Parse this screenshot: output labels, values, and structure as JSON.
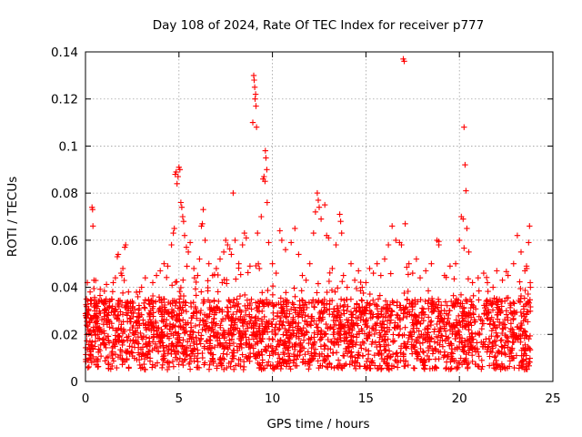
{
  "chart_data": {
    "type": "scatter",
    "title": "Day 108 of 2024, Rate Of TEC Index for receiver p777",
    "xlabel": "GPS time / hours",
    "ylabel": "ROTI / TECUs",
    "xlim": [
      0,
      25
    ],
    "ylim": [
      0,
      0.14
    ],
    "x_ticks": [
      0,
      5,
      10,
      15,
      20,
      25
    ],
    "x_tick_labels": [
      "0",
      "5",
      "10",
      "15",
      "20",
      "25"
    ],
    "y_ticks": [
      0,
      0.02,
      0.04,
      0.06,
      0.08,
      0.1,
      0.12,
      0.14
    ],
    "y_tick_labels": [
      "0",
      "0.02",
      "0.04",
      "0.06",
      "0.08",
      "0.1",
      "0.12",
      "0.14"
    ],
    "grid": true,
    "marker": "+",
    "series": [
      {
        "name": "ROTI",
        "color": "#ff0000",
        "points": [
          [
            0.05,
            0.035
          ],
          [
            0.1,
            0.042
          ],
          [
            0.15,
            0.03
          ],
          [
            0.2,
            0.025
          ],
          [
            0.25,
            0.038
          ],
          [
            0.3,
            0.033
          ],
          [
            0.35,
            0.074
          ],
          [
            0.38,
            0.073
          ],
          [
            0.4,
            0.066
          ],
          [
            0.45,
            0.043
          ],
          [
            0.5,
            0.028
          ],
          [
            0.6,
            0.031
          ],
          [
            0.8,
            0.029
          ],
          [
            1.0,
            0.03
          ],
          [
            1.2,
            0.028
          ],
          [
            1.4,
            0.035
          ],
          [
            1.6,
            0.044
          ],
          [
            1.7,
            0.053
          ],
          [
            1.75,
            0.054
          ],
          [
            1.9,
            0.046
          ],
          [
            2.0,
            0.048
          ],
          [
            2.1,
            0.057
          ],
          [
            2.15,
            0.058
          ],
          [
            2.3,
            0.038
          ],
          [
            2.5,
            0.034
          ],
          [
            2.8,
            0.036
          ],
          [
            3.0,
            0.04
          ],
          [
            3.2,
            0.044
          ],
          [
            3.4,
            0.033
          ],
          [
            3.6,
            0.042
          ],
          [
            3.8,
            0.045
          ],
          [
            4.0,
            0.047
          ],
          [
            4.2,
            0.05
          ],
          [
            4.4,
            0.049
          ],
          [
            4.6,
            0.058
          ],
          [
            4.7,
            0.063
          ],
          [
            4.75,
            0.065
          ],
          [
            4.8,
            0.088
          ],
          [
            4.85,
            0.089
          ],
          [
            4.9,
            0.084
          ],
          [
            4.95,
            0.087
          ],
          [
            5.0,
            0.091
          ],
          [
            5.05,
            0.09
          ],
          [
            5.1,
            0.076
          ],
          [
            5.15,
            0.074
          ],
          [
            5.2,
            0.07
          ],
          [
            5.25,
            0.068
          ],
          [
            5.3,
            0.062
          ],
          [
            5.4,
            0.057
          ],
          [
            5.5,
            0.055
          ],
          [
            5.6,
            0.059
          ],
          [
            5.8,
            0.048
          ],
          [
            6.0,
            0.045
          ],
          [
            6.1,
            0.052
          ],
          [
            6.2,
            0.066
          ],
          [
            6.25,
            0.067
          ],
          [
            6.3,
            0.073
          ],
          [
            6.4,
            0.06
          ],
          [
            6.6,
            0.05
          ],
          [
            6.8,
            0.045
          ],
          [
            7.0,
            0.048
          ],
          [
            7.2,
            0.052
          ],
          [
            7.4,
            0.055
          ],
          [
            7.5,
            0.06
          ],
          [
            7.6,
            0.058
          ],
          [
            7.8,
            0.054
          ],
          [
            7.9,
            0.08
          ],
          [
            8.0,
            0.06
          ],
          [
            8.2,
            0.05
          ],
          [
            8.4,
            0.058
          ],
          [
            8.5,
            0.063
          ],
          [
            8.6,
            0.061
          ],
          [
            8.8,
            0.049
          ],
          [
            8.95,
            0.11
          ],
          [
            9.0,
            0.13
          ],
          [
            9.02,
            0.128
          ],
          [
            9.05,
            0.125
          ],
          [
            9.07,
            0.12
          ],
          [
            9.1,
            0.122
          ],
          [
            9.12,
            0.117
          ],
          [
            9.15,
            0.108
          ],
          [
            9.2,
            0.063
          ],
          [
            9.3,
            0.048
          ],
          [
            9.4,
            0.07
          ],
          [
            9.5,
            0.086
          ],
          [
            9.55,
            0.087
          ],
          [
            9.6,
            0.085
          ],
          [
            9.62,
            0.098
          ],
          [
            9.65,
            0.095
          ],
          [
            9.7,
            0.09
          ],
          [
            9.72,
            0.076
          ],
          [
            9.8,
            0.059
          ],
          [
            10.0,
            0.05
          ],
          [
            10.2,
            0.046
          ],
          [
            10.4,
            0.064
          ],
          [
            10.5,
            0.06
          ],
          [
            10.7,
            0.056
          ],
          [
            11.0,
            0.059
          ],
          [
            11.2,
            0.065
          ],
          [
            11.4,
            0.054
          ],
          [
            11.6,
            0.045
          ],
          [
            11.8,
            0.043
          ],
          [
            12.0,
            0.05
          ],
          [
            12.2,
            0.063
          ],
          [
            12.3,
            0.072
          ],
          [
            12.4,
            0.08
          ],
          [
            12.45,
            0.077
          ],
          [
            12.5,
            0.074
          ],
          [
            12.6,
            0.069
          ],
          [
            12.8,
            0.075
          ],
          [
            12.9,
            0.062
          ],
          [
            13.0,
            0.061
          ],
          [
            13.2,
            0.048
          ],
          [
            13.4,
            0.058
          ],
          [
            13.6,
            0.071
          ],
          [
            13.65,
            0.068
          ],
          [
            13.7,
            0.063
          ],
          [
            13.8,
            0.045
          ],
          [
            14.0,
            0.04
          ],
          [
            14.2,
            0.05
          ],
          [
            14.4,
            0.043
          ],
          [
            14.6,
            0.047
          ],
          [
            14.8,
            0.04
          ],
          [
            15.0,
            0.042
          ],
          [
            15.2,
            0.048
          ],
          [
            15.4,
            0.046
          ],
          [
            15.6,
            0.05
          ],
          [
            15.8,
            0.045
          ],
          [
            16.0,
            0.052
          ],
          [
            16.2,
            0.058
          ],
          [
            16.4,
            0.066
          ],
          [
            16.6,
            0.06
          ],
          [
            16.8,
            0.059
          ],
          [
            16.9,
            0.058
          ],
          [
            17.0,
            0.137
          ],
          [
            17.05,
            0.136
          ],
          [
            17.1,
            0.067
          ],
          [
            17.3,
            0.05
          ],
          [
            17.5,
            0.046
          ],
          [
            17.7,
            0.052
          ],
          [
            17.9,
            0.044
          ],
          [
            18.2,
            0.047
          ],
          [
            18.5,
            0.05
          ],
          [
            18.8,
            0.06
          ],
          [
            18.9,
            0.058
          ],
          [
            19.2,
            0.045
          ],
          [
            19.5,
            0.049
          ],
          [
            19.8,
            0.05
          ],
          [
            20.0,
            0.06
          ],
          [
            20.1,
            0.07
          ],
          [
            20.2,
            0.069
          ],
          [
            20.25,
            0.108
          ],
          [
            20.3,
            0.092
          ],
          [
            20.35,
            0.081
          ],
          [
            20.4,
            0.065
          ],
          [
            20.5,
            0.055
          ],
          [
            20.7,
            0.042
          ],
          [
            21.0,
            0.044
          ],
          [
            21.3,
            0.046
          ],
          [
            21.5,
            0.042
          ],
          [
            21.8,
            0.04
          ],
          [
            22.0,
            0.047
          ],
          [
            22.3,
            0.043
          ],
          [
            22.6,
            0.045
          ],
          [
            22.9,
            0.05
          ],
          [
            23.1,
            0.062
          ],
          [
            23.3,
            0.055
          ],
          [
            23.5,
            0.047
          ],
          [
            23.6,
            0.048
          ],
          [
            23.7,
            0.059
          ],
          [
            23.75,
            0.066
          ],
          [
            23.8,
            0.04
          ]
        ]
      }
    ],
    "dense_band": {
      "description_values": "bulk of samples between 0.005 and 0.045 TECU/s over 0-23.8 h",
      "x_range": [
        0.0,
        23.8
      ],
      "y_base_range": [
        0.005,
        0.035
      ],
      "count": 2600,
      "seed": 108
    }
  }
}
